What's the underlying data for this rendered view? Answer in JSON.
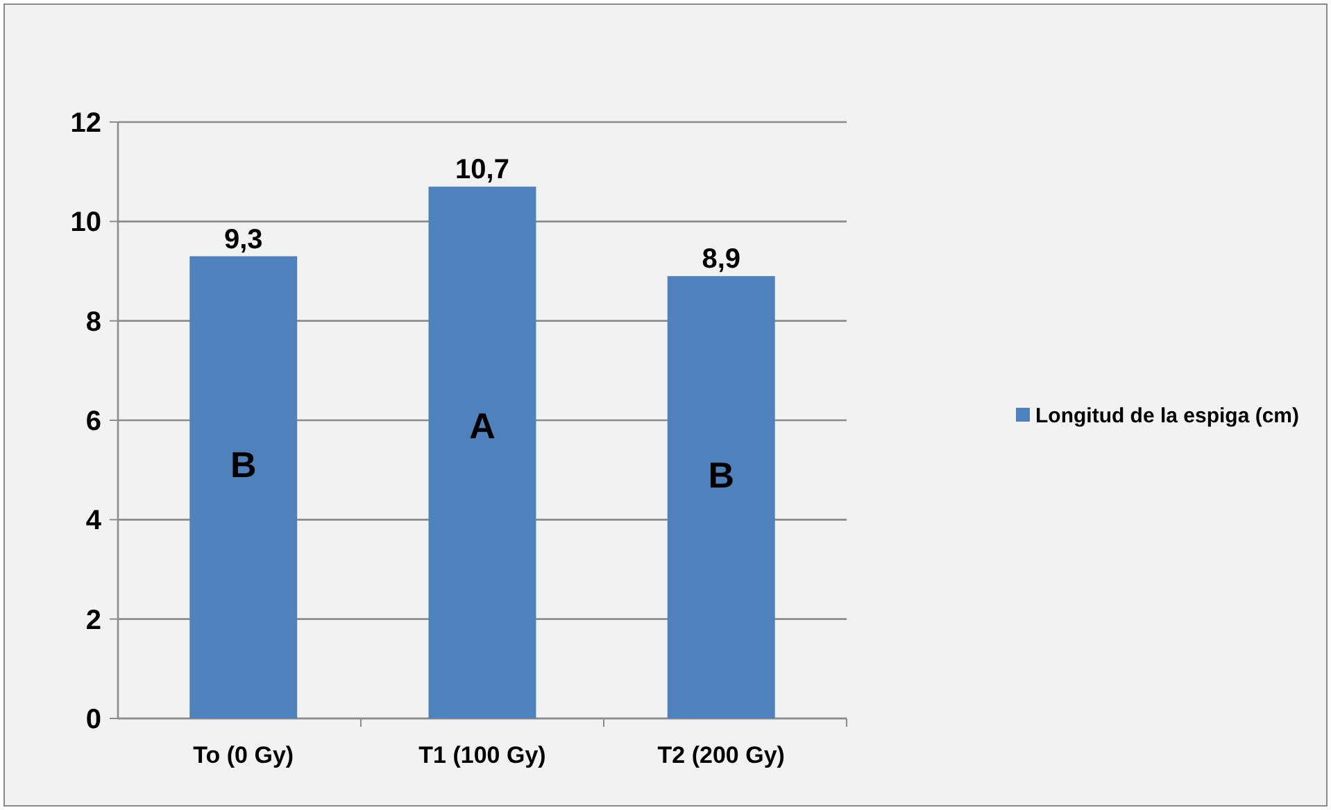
{
  "chart_data": {
    "type": "bar",
    "categories": [
      "To (0 Gy)",
      "T1 (100 Gy)",
      "T2 (200 Gy)"
    ],
    "series": [
      {
        "name": "Longitud de la espiga (cm)",
        "color": "#4f81bd",
        "values": [
          9.3,
          10.7,
          8.9
        ],
        "value_labels": [
          "9,3",
          "10,7",
          "8,9"
        ]
      }
    ],
    "ylim": [
      0,
      12
    ],
    "yticks": [
      0,
      2,
      4,
      6,
      8,
      10,
      12
    ],
    "grid": "y",
    "legend": "right",
    "annotations": [
      "B",
      "A",
      "B"
    ]
  }
}
